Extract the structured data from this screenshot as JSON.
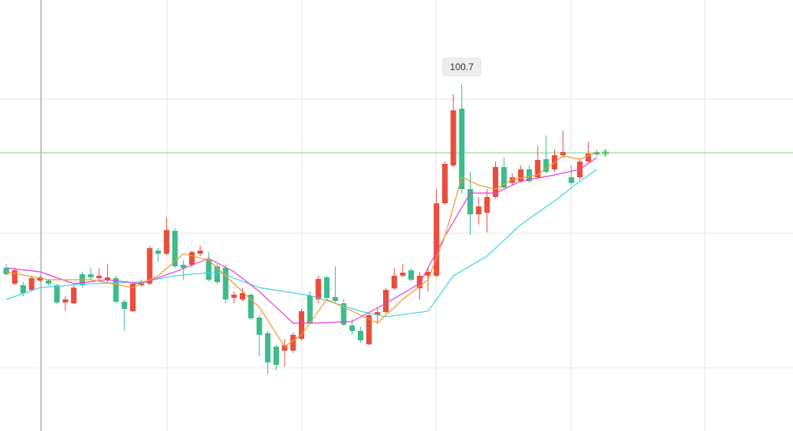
{
  "chart_data": {
    "type": "candlestick",
    "up_color": "#eb4d3d",
    "down_color": "#3dbb8a",
    "ylim": [
      56.7,
      111.4
    ],
    "crosshair": 92.0,
    "crosshair_color": "#7fd67f",
    "open": [
      77.4,
      75.4,
      75.2,
      74.6,
      75.8,
      75.8,
      75.2,
      73.0,
      72.9,
      76.6,
      76.6,
      76.1,
      75.8,
      76.1,
      73.1,
      71.9,
      75.2,
      75.4,
      79.6,
      79.2,
      82.1,
      77.8,
      77.8,
      79.2,
      78.4,
      77.6,
      77.4,
      73.6,
      73.4,
      74.0,
      71.1,
      69.1,
      67.4,
      66.9,
      66.9,
      68.4,
      73.9,
      73.4,
      76.2,
      73.7,
      72.9,
      70.1,
      69.4,
      67.7,
      71.4,
      71.8,
      74.8,
      76.4,
      77.1,
      74.8,
      76.4,
      76.4,
      85.6,
      90.4,
      97.6,
      87.4,
      84.2,
      84.4,
      86.4,
      90.2,
      88.2,
      88.4,
      89.9,
      88.9,
      91.2,
      89.9,
      91.7,
      88.9,
      88.9,
      90.9,
      92.1
    ],
    "high": [
      77.9,
      77.4,
      75.6,
      76.4,
      76.4,
      76.0,
      75.4,
      73.8,
      75.2,
      76.9,
      77.4,
      77.4,
      77.9,
      76.4,
      73.4,
      75.6,
      75.9,
      80.2,
      79.9,
      83.8,
      82.4,
      78.4,
      79.6,
      80.2,
      79.4,
      77.9,
      77.8,
      74.4,
      74.9,
      74.2,
      71.4,
      69.4,
      67.6,
      68.4,
      69.2,
      72.2,
      74.4,
      76.4,
      76.4,
      77.6,
      73.4,
      70.9,
      69.9,
      71.6,
      72.4,
      74.8,
      77.4,
      77.9,
      77.4,
      76.9,
      77.4,
      87.4,
      90.9,
      99.4,
      100.7,
      89.6,
      86.4,
      87.4,
      90.9,
      91.4,
      89.4,
      90.4,
      90.4,
      92.9,
      94.2,
      92.4,
      94.8,
      90.4,
      91.2,
      93.4,
      92.4
    ],
    "low": [
      76.4,
      75.2,
      73.8,
      74.4,
      75.6,
      75.2,
      72.8,
      71.9,
      72.8,
      74.9,
      75.9,
      75.8,
      75.6,
      72.9,
      69.4,
      71.8,
      75.0,
      75.2,
      78.2,
      79.0,
      77.4,
      75.9,
      77.6,
      78.9,
      75.7,
      75.4,
      72.9,
      72.9,
      73.2,
      70.8,
      66.2,
      63.9,
      64.4,
      64.9,
      66.6,
      68.2,
      70.2,
      72.9,
      73.4,
      72.9,
      70.0,
      68.9,
      67.9,
      67.6,
      70.4,
      71.6,
      74.6,
      76.2,
      75.7,
      73.4,
      74.4,
      76.2,
      85.4,
      90.2,
      86.9,
      81.6,
      82.9,
      81.9,
      86.2,
      87.4,
      87.9,
      88.2,
      88.2,
      88.7,
      89.4,
      89.6,
      91.4,
      87.9,
      88.6,
      90.6,
      91.6
    ],
    "close": [
      76.6,
      77.1,
      74.2,
      76.1,
      76.2,
      75.4,
      73.0,
      73.4,
      74.9,
      75.2,
      76.2,
      76.4,
      76.2,
      73.1,
      72.2,
      75.4,
      75.6,
      79.9,
      79.2,
      82.2,
      77.6,
      77.4,
      79.4,
      79.6,
      75.9,
      75.6,
      73.4,
      74.0,
      74.2,
      71.0,
      68.9,
      65.4,
      65.1,
      67.6,
      68.9,
      71.9,
      70.4,
      76.0,
      73.6,
      73.2,
      70.2,
      69.4,
      68.2,
      71.4,
      71.8,
      74.6,
      76.4,
      76.8,
      75.9,
      76.4,
      76.9,
      85.6,
      90.6,
      97.4,
      87.4,
      84.2,
      85.2,
      86.4,
      90.2,
      87.6,
      88.9,
      89.9,
      88.4,
      91.1,
      89.6,
      91.7,
      92.1,
      88.2,
      90.9,
      91.9,
      91.8
    ],
    "series": [
      {
        "color": "#40d6e6",
        "x": [
          0,
          4,
          10,
          16,
          20,
          25,
          30,
          36,
          42,
          45,
          50,
          53,
          57,
          61,
          65,
          68,
          70
        ],
        "values": [
          73.4,
          74.9,
          75.4,
          75.6,
          76.4,
          76.9,
          74.9,
          73.9,
          71.9,
          71.2,
          71.9,
          76.4,
          78.9,
          82.9,
          85.9,
          88.4,
          89.9
        ]
      },
      {
        "color": "#e83fd9",
        "x": [
          0,
          4,
          8,
          12,
          16,
          20,
          24,
          27,
          30,
          34,
          37,
          41,
          45,
          49,
          52,
          55,
          58,
          61,
          65,
          68,
          70
        ],
        "values": [
          77.4,
          76.9,
          75.4,
          75.9,
          75.4,
          76.9,
          78.6,
          76.9,
          74.4,
          70.4,
          70.4,
          70.6,
          72.9,
          75.4,
          81.4,
          86.9,
          86.9,
          88.4,
          89.2,
          89.9,
          91.4
        ]
      },
      {
        "color": "#f39a2c",
        "x": [
          0,
          5,
          10,
          15,
          18,
          21,
          24,
          27,
          30,
          33,
          35,
          38,
          41,
          44,
          47,
          50,
          52,
          54,
          56,
          58,
          60,
          63,
          66,
          68,
          70
        ],
        "values": [
          76.9,
          75.9,
          75.9,
          74.9,
          76.4,
          79.2,
          78.4,
          75.4,
          72.4,
          67.4,
          68.9,
          73.4,
          71.9,
          70.4,
          73.4,
          75.9,
          81.4,
          88.9,
          87.9,
          87.4,
          88.6,
          89.2,
          91.6,
          91.2,
          92.1
        ]
      }
    ]
  }
}
